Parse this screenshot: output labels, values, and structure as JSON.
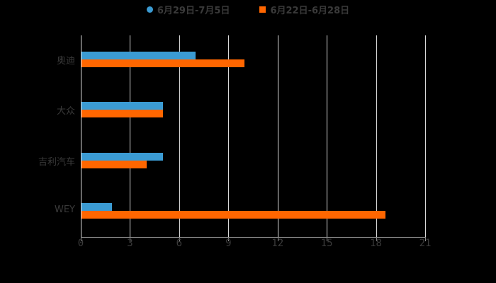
{
  "legend": {
    "series1": "6月29日-7月5日",
    "series2": "6月22日-6月28日"
  },
  "colors": {
    "series1": "#3b9bd3",
    "series2": "#ff6600",
    "background": "#000000",
    "grid": "#d9d9d9",
    "text": "#3a3a3a"
  },
  "axis": {
    "ticks": [
      "0",
      "3",
      "6",
      "9",
      "12",
      "15",
      "18",
      "21"
    ]
  },
  "categories": [
    "奥迪",
    "大众",
    "吉利汽车",
    "WEY"
  ],
  "chart_data": {
    "type": "bar",
    "orientation": "horizontal",
    "title": "",
    "categories": [
      "奥迪",
      "大众",
      "吉利汽车",
      "WEY"
    ],
    "series": [
      {
        "name": "6月29日-7月5日",
        "color": "#3b9bd3",
        "values": [
          7,
          5,
          5,
          1.9
        ]
      },
      {
        "name": "6月22日-6月28日",
        "color": "#ff6600",
        "values": [
          10,
          5,
          4,
          18.6
        ]
      }
    ],
    "xlabel": "",
    "ylabel": "",
    "xlim": [
      0,
      21
    ],
    "xticks": [
      0,
      3,
      6,
      9,
      12,
      15,
      18,
      21
    ],
    "grid": true,
    "legend_position": "top"
  }
}
